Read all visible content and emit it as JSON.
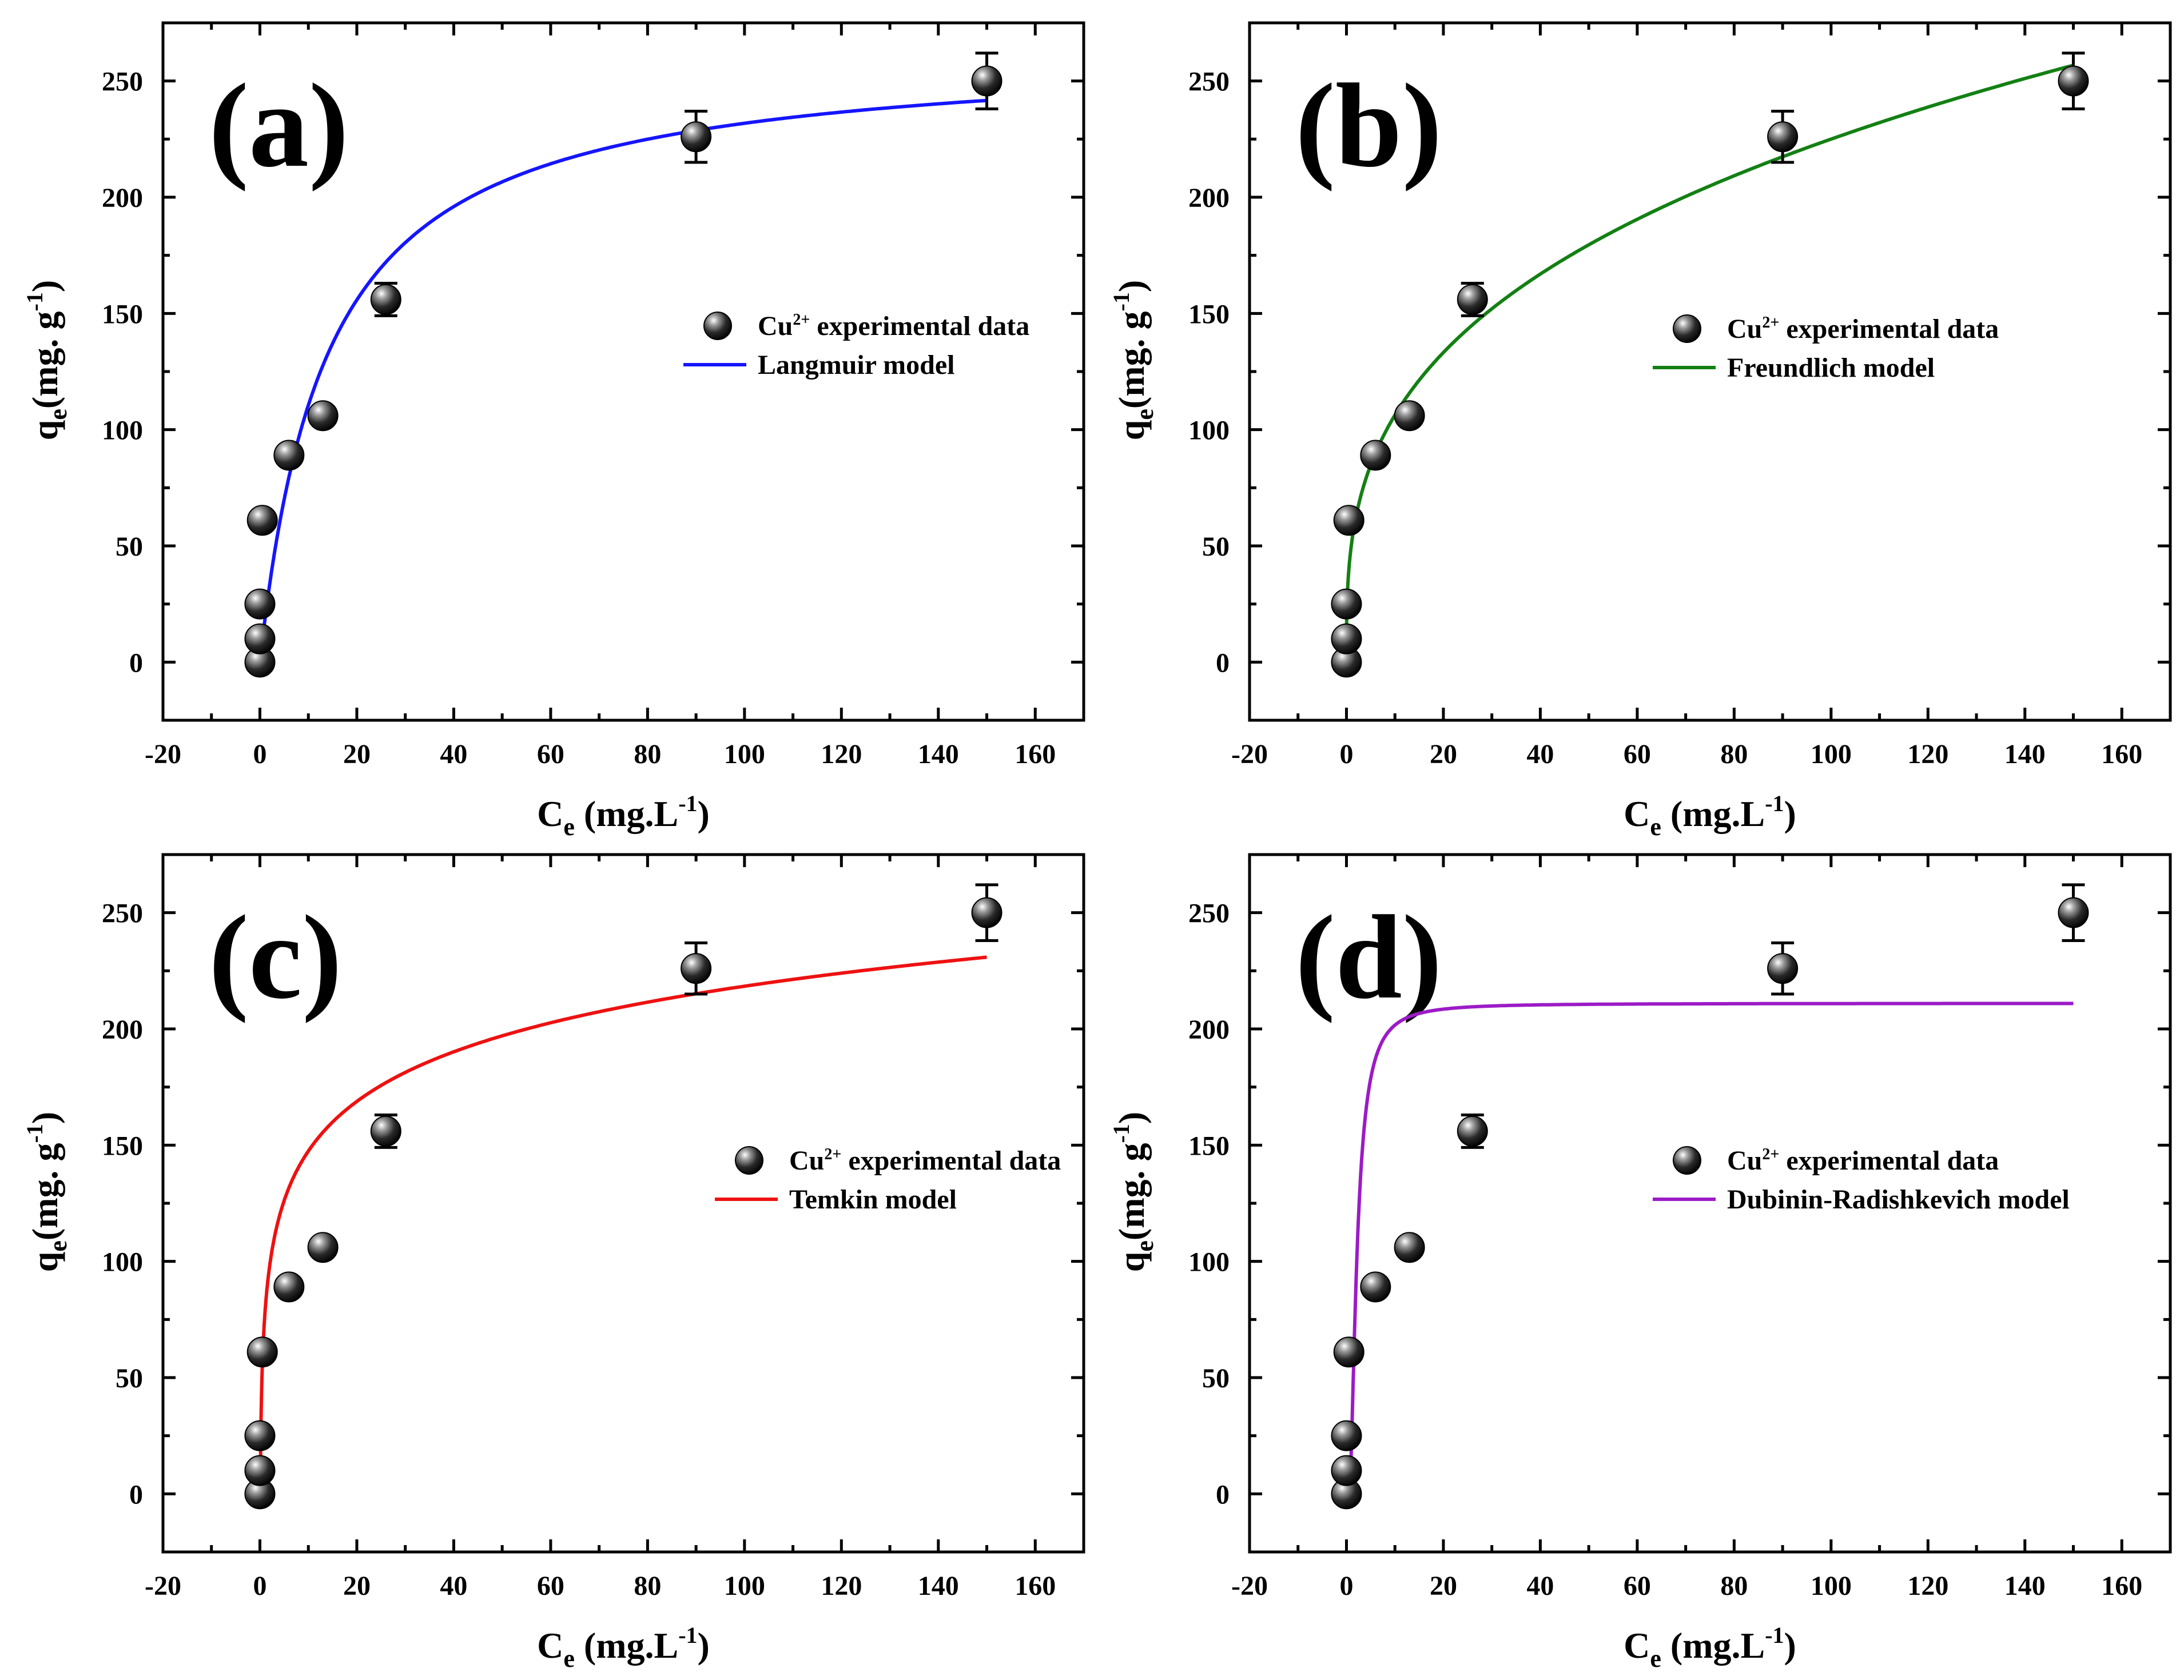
{
  "chart_data": [
    {
      "type": "scatter",
      "panel_label": "(a)",
      "xlabel": {
        "base": "C",
        "sub": "e",
        "text": " (mg.L",
        "sup": "-1",
        "close": ")"
      },
      "ylabel": {
        "base": "q",
        "sub": "e",
        "text": "(mg. g",
        "sup": "-1",
        "close": ")"
      },
      "xlim": [
        -20,
        170
      ],
      "ylim": [
        -25,
        275
      ],
      "xticks": [
        -20,
        0,
        20,
        40,
        60,
        80,
        100,
        120,
        140,
        160
      ],
      "yticks": [
        0,
        50,
        100,
        150,
        200,
        250
      ],
      "series": [
        {
          "name": "Cu2+ experimental data",
          "kind": "points",
          "x": [
            0,
            0,
            0,
            0.5,
            6,
            13,
            26,
            90,
            150
          ],
          "y": [
            0,
            10,
            25,
            61,
            89,
            106,
            156,
            226,
            250
          ],
          "err": [
            0,
            0,
            0,
            0,
            0,
            0,
            7,
            11,
            12
          ]
        },
        {
          "name": "Langmuir model",
          "kind": "line",
          "color": "#1515ff",
          "model": "langmuir",
          "params": {
            "qm": 264,
            "KL": 0.072
          },
          "xrange": [
            0,
            150
          ]
        }
      ],
      "legend": {
        "points_label": {
          "pre": "Cu",
          "sup": "2+",
          "post": " experimental data"
        },
        "line_label": "Langmuir model",
        "position": "center-right"
      }
    },
    {
      "type": "scatter",
      "panel_label": "(b)",
      "xlabel": {
        "base": "C",
        "sub": "e",
        "text": " (mg.L",
        "sup": "-1",
        "close": ")"
      },
      "ylabel": {
        "base": "q",
        "sub": "e",
        "text": "(mg. g",
        "sup": "-1",
        "close": ")"
      },
      "xlim": [
        -20,
        170
      ],
      "ylim": [
        -25,
        275
      ],
      "xticks": [
        -20,
        0,
        20,
        40,
        60,
        80,
        100,
        120,
        140,
        160
      ],
      "yticks": [
        0,
        50,
        100,
        150,
        200,
        250
      ],
      "series": [
        {
          "name": "Cu2+ experimental data",
          "kind": "points",
          "x": [
            0,
            0,
            0,
            0.5,
            6,
            13,
            26,
            90,
            150
          ],
          "y": [
            0,
            10,
            25,
            61,
            89,
            106,
            156,
            226,
            250
          ],
          "err": [
            0,
            0,
            0,
            0,
            0,
            0,
            7,
            11,
            12
          ]
        },
        {
          "name": "Freundlich model",
          "kind": "line",
          "color": "#138013",
          "model": "freundlich",
          "params": {
            "KF": 50.2,
            "n": 3.07
          },
          "xrange": [
            0,
            150
          ]
        }
      ],
      "legend": {
        "points_label": {
          "pre": "Cu",
          "sup": "2+",
          "post": " experimental data"
        },
        "line_label": "Freundlich model",
        "position": "center-right"
      }
    },
    {
      "type": "scatter",
      "panel_label": "(c)",
      "xlabel": {
        "base": "C",
        "sub": "e",
        "text": " (mg.L",
        "sup": "-1",
        "close": ")"
      },
      "ylabel": {
        "base": "q",
        "sub": "e",
        "text": "(mg. g",
        "sup": "-1",
        "close": ")"
      },
      "xlim": [
        -20,
        170
      ],
      "ylim": [
        -25,
        275
      ],
      "xticks": [
        -20,
        0,
        20,
        40,
        60,
        80,
        100,
        120,
        140,
        160
      ],
      "yticks": [
        0,
        50,
        100,
        150,
        200,
        250
      ],
      "series": [
        {
          "name": "Cu2+ experimental data",
          "kind": "points",
          "x": [
            0,
            0,
            0,
            0.5,
            6,
            13,
            26,
            90,
            150
          ],
          "y": [
            0,
            10,
            25,
            61,
            89,
            106,
            156,
            226,
            250
          ],
          "err": [
            0,
            0,
            0,
            0,
            0,
            0,
            7,
            11,
            12
          ]
        },
        {
          "name": "Temkin model",
          "kind": "line",
          "color": "#ee1111",
          "model": "temkin",
          "params": {
            "A": 12,
            "B": 30.8
          },
          "xrange": [
            0.12,
            150
          ]
        }
      ],
      "legend": {
        "points_label": {
          "pre": "Cu",
          "sup": "2+",
          "post": " experimental data"
        },
        "line_label": "Temkin model",
        "position": "center-right"
      }
    },
    {
      "type": "scatter",
      "panel_label": "(d)",
      "xlabel": {
        "base": "C",
        "sub": "e",
        "text": " (mg.L",
        "sup": "-1",
        "close": ")"
      },
      "ylabel": {
        "base": "q",
        "sub": "e",
        "text": "(mg. g",
        "sup": "-1",
        "close": ")"
      },
      "xlim": [
        -20,
        170
      ],
      "ylim": [
        -25,
        275
      ],
      "xticks": [
        -20,
        0,
        20,
        40,
        60,
        80,
        100,
        120,
        140,
        160
      ],
      "yticks": [
        0,
        50,
        100,
        150,
        200,
        250
      ],
      "series": [
        {
          "name": "Cu2+ experimental data",
          "kind": "points",
          "x": [
            0,
            0,
            0,
            0.5,
            6,
            13,
            26,
            90,
            150
          ],
          "y": [
            0,
            10,
            25,
            61,
            89,
            106,
            156,
            226,
            250
          ],
          "err": [
            0,
            0,
            0,
            0,
            0,
            0,
            7,
            11,
            12
          ]
        },
        {
          "name": "Dubinin-Radishkevich model",
          "kind": "line",
          "color": "#9b1bc6",
          "model": "dr",
          "params": {
            "qm": 211,
            "beta": 5.0
          },
          "xrange": [
            0,
            150
          ]
        }
      ],
      "legend": {
        "points_label": {
          "pre": "Cu",
          "sup": "2+",
          "post": " experimental data"
        },
        "line_label": "Dubinin-Radishkevich model",
        "position": "center-right"
      }
    }
  ]
}
